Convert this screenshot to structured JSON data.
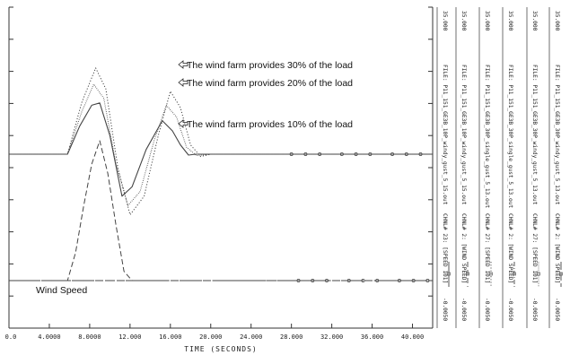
{
  "chart_data": {
    "type": "line",
    "xlabel": "TIME (SECONDS)",
    "xlim": [
      0,
      42
    ],
    "x_ticks": [
      "0.0",
      "4.0000",
      "8.0000",
      "12.000",
      "16.000",
      "20.000",
      "24.000",
      "28.000",
      "32.000",
      "36.000",
      "40.000"
    ],
    "series": [
      {
        "name": "CHNL# 23: [SPEED 101]",
        "file": "FILE: P11_151_GE3B_10P_windy_gust_5_15.out",
        "scale_max": "35.000",
        "scale_min": "-0.0050",
        "style": "solid",
        "x": [
          0,
          5.8,
          7.0,
          8.2,
          9.0,
          10.0,
          11.2,
          12.2,
          13.6,
          15.2,
          16.2,
          17.0,
          17.8,
          18.5,
          22,
          30,
          42
        ],
        "y": [
          0,
          0,
          0.6,
          1.05,
          1.1,
          0.4,
          -0.9,
          -0.7,
          0.1,
          0.72,
          0.5,
          0.2,
          -0.02,
          0,
          0,
          0,
          0
        ]
      },
      {
        "name": "CHNL# 2: [WIND SPEED]",
        "file": "FILE: P11_151_GE3B_10P_windy_gust_5_15.out",
        "scale_max": "35.000",
        "scale_min": "-0.0050",
        "style": "dashed",
        "x": [
          0,
          5.8,
          6.6,
          7.4,
          8.2,
          9.0,
          9.8,
          10.6,
          11.4,
          12.2,
          14,
          20,
          30,
          42
        ],
        "y": [
          0,
          0,
          0.6,
          1.6,
          2.5,
          3.0,
          2.3,
          1.2,
          0.2,
          0,
          0,
          0,
          0,
          0
        ]
      },
      {
        "name": "CHNL# 27: [SPEED 101]",
        "file": "FILE: P11_151_GE3B_30P_single_gust_5_13.out",
        "scale_max": "35.000",
        "scale_min": "-0.0050",
        "style": "dotted",
        "x": [
          0,
          5.8,
          7.2,
          8.6,
          9.6,
          10.8,
          12.0,
          13.4,
          14.8,
          16.0,
          17.0,
          18.0,
          19.0,
          20,
          42
        ],
        "y": [
          0,
          0,
          1.1,
          1.85,
          1.4,
          -0.3,
          -1.3,
          -0.9,
          0.4,
          1.35,
          1.0,
          0.2,
          -0.05,
          0,
          0
        ]
      },
      {
        "name": "CHNL# 2: [WIND SPEED]",
        "file": "FILE: P11_151_GE3B_30P_single_gust_5_13.out",
        "scale_max": "35.000",
        "scale_min": "-0.0050",
        "style": "dash-dot",
        "x": [
          0,
          42
        ],
        "y": [
          0,
          0
        ]
      },
      {
        "name": "CHNL# 27: [SPEED 101]",
        "file": "FILE: P11_151_GE3B_30P_windy_gust_5_13.out",
        "scale_max": "35.000",
        "scale_min": "-0.0050",
        "style": "dotted-fine",
        "x": [
          0,
          5.8,
          7.2,
          8.4,
          9.4,
          10.6,
          11.8,
          13.0,
          14.4,
          15.6,
          16.6,
          17.6,
          18.6,
          20,
          42
        ],
        "y": [
          0,
          0,
          0.9,
          1.5,
          1.2,
          -0.2,
          -1.1,
          -0.8,
          0.3,
          1.05,
          0.8,
          0.15,
          -0.03,
          0,
          0
        ]
      },
      {
        "name": "CHNL# 2: [WIND SPEED]",
        "file": "FILE: P11_151_GE3B_30P_windy_gust_5_13.out",
        "scale_max": "35.000",
        "scale_min": "-0.0050",
        "style": "dash-long",
        "x": [
          0,
          42
        ],
        "y": [
          0,
          0
        ]
      }
    ],
    "annotations": [
      "The wind farm provides 30% of the load",
      "The wind farm provides 20% of the load",
      "The wind farm provides 10% of the load"
    ],
    "wind_label": "Wind Speed",
    "grid": false
  }
}
